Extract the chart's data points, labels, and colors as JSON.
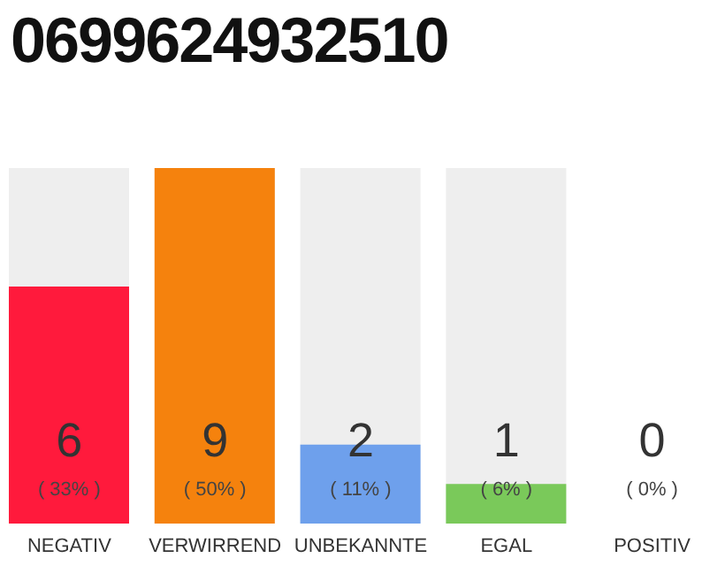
{
  "chart_data": {
    "type": "bar",
    "title": "0699624932510",
    "categories": [
      "NEGATIV",
      "VERWIRREND",
      "UNBEKANNTE",
      "EGAL",
      "POSITIV"
    ],
    "values": [
      6,
      9,
      2,
      1,
      0
    ],
    "colors": [
      "#ff1a3c",
      "#f5820d",
      "#6ea0ec",
      "#7ac95a",
      "#cccccc"
    ],
    "value_labels": [
      "6",
      "9",
      "2",
      "1",
      "0"
    ],
    "annotations": [
      "( 33% )",
      "( 50% )",
      "( 11% )",
      "( 6% )",
      "( 0% )"
    ]
  }
}
